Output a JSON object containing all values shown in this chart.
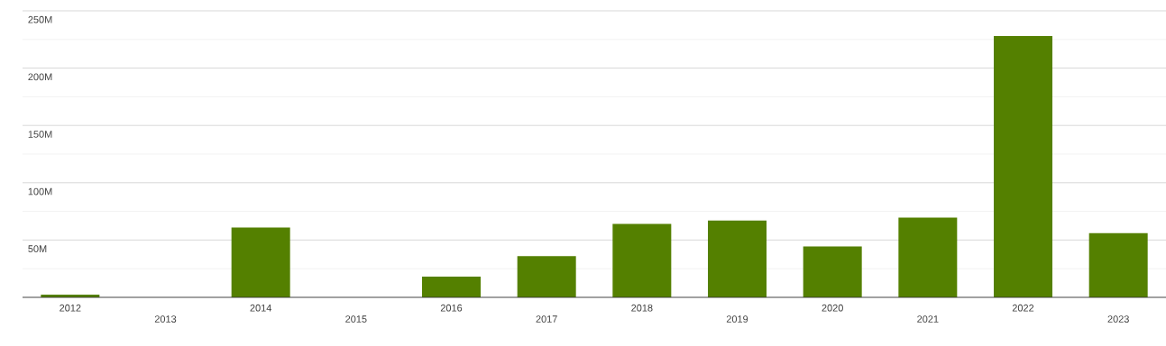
{
  "chart_data": {
    "type": "bar",
    "categories": [
      "2012",
      "2013",
      "2014",
      "2015",
      "2016",
      "2017",
      "2018",
      "2019",
      "2020",
      "2021",
      "2022",
      "2023"
    ],
    "values": [
      2.3,
      null,
      61,
      null,
      18,
      36,
      64,
      67,
      44.5,
      69.5,
      228,
      56
    ],
    "color": "#548000",
    "ylim": [
      0,
      250
    ],
    "yticks": [
      {
        "value": 0,
        "label": null
      },
      {
        "value": 50,
        "label": "50M"
      },
      {
        "value": 100,
        "label": "100M"
      },
      {
        "value": 150,
        "label": "150M"
      },
      {
        "value": 200,
        "label": "200M"
      },
      {
        "value": 250,
        "label": "250M"
      }
    ],
    "grid": "y"
  }
}
